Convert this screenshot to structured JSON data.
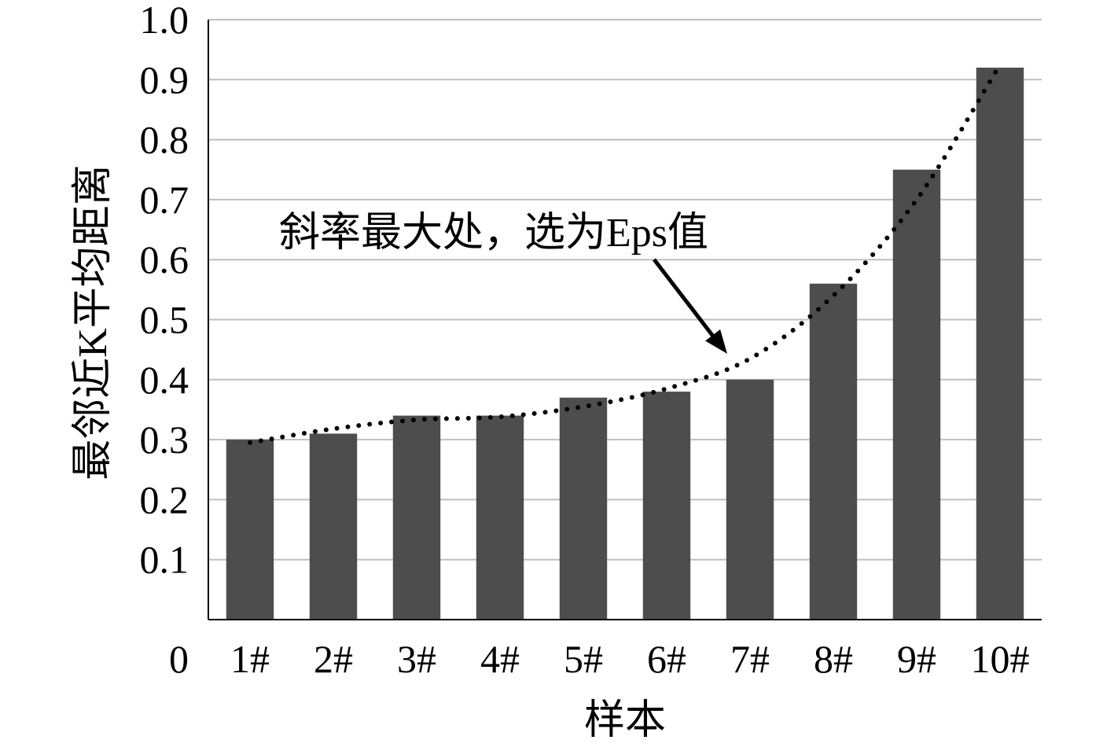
{
  "chart_data": {
    "type": "bar",
    "title": "",
    "xlabel": "样本",
    "ylabel": "最邻近K平均距离",
    "categories": [
      "1#",
      "2#",
      "3#",
      "4#",
      "5#",
      "6#",
      "7#",
      "8#",
      "9#",
      "10#"
    ],
    "values": [
      0.3,
      0.31,
      0.34,
      0.34,
      0.37,
      0.38,
      0.4,
      0.56,
      0.75,
      0.92
    ],
    "trend_line": [
      0.295,
      0.318,
      0.333,
      0.338,
      0.355,
      0.385,
      0.435,
      0.54,
      0.7,
      0.925
    ],
    "ylim": [
      0,
      1.0
    ],
    "yticks": [
      "0",
      "0.1",
      "0.2",
      "0.3",
      "0.4",
      "0.5",
      "0.6",
      "0.7",
      "0.8",
      "0.9",
      "1.0"
    ],
    "grid": true,
    "legend": "none",
    "annotation": {
      "text": "斜率最大处，选为Eps值",
      "points_to_value": 0.43
    },
    "colors": {
      "bar": "#4d4d4d",
      "grid": "#bfbfbf",
      "axis": "#000000",
      "trend": "#000000"
    }
  }
}
